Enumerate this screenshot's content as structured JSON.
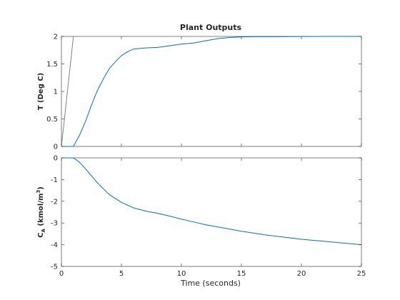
{
  "figure": {
    "title": "Plant Outputs",
    "xlabel": "Time (seconds)",
    "ylabel_top": "T (Deg C)",
    "ylabel_bottom_main": "C",
    "ylabel_bottom_sub": "A",
    "ylabel_bottom_rest": " (kmol/m",
    "ylabel_bottom_sup": "3",
    "ylabel_bottom_close": ")"
  },
  "colors": {
    "reference": "#808080",
    "output": "#0072BD",
    "axis": "#262626"
  },
  "chart_data": [
    {
      "type": "line",
      "title": "Plant Outputs",
      "ylabel": "T (Deg C)",
      "xlim": [
        0,
        25
      ],
      "ylim": [
        0,
        2
      ],
      "xticks": [
        0,
        5,
        10,
        15,
        20,
        25
      ],
      "yticks": [
        0,
        0.5,
        1,
        1.5,
        2
      ],
      "ytick_labels": [
        "0",
        "0.5",
        "1",
        "1.5",
        "2"
      ],
      "grid": false,
      "series": [
        {
          "role": "reference",
          "x": [
            0,
            1,
            25
          ],
          "y": [
            0,
            2,
            2
          ]
        },
        {
          "role": "output",
          "x": [
            0,
            0.5,
            1,
            1.5,
            2,
            2.5,
            3,
            3.5,
            4,
            4.5,
            5,
            5.5,
            6,
            7,
            8,
            9,
            10,
            11,
            12,
            13,
            14,
            15,
            16,
            18,
            20,
            22,
            25
          ],
          "y": [
            0,
            0,
            0,
            0.2,
            0.45,
            0.75,
            1.02,
            1.23,
            1.42,
            1.54,
            1.65,
            1.72,
            1.77,
            1.79,
            1.8,
            1.83,
            1.86,
            1.88,
            1.92,
            1.96,
            1.98,
            1.99,
            1.995,
            1.995,
            1.998,
            2.0,
            2.0
          ]
        }
      ]
    },
    {
      "type": "line",
      "xlabel": "Time (seconds)",
      "ylabel": "C_A (kmol/m^3)",
      "xlim": [
        0,
        25
      ],
      "ylim": [
        -5,
        0
      ],
      "xticks": [
        0,
        5,
        10,
        15,
        20,
        25
      ],
      "xtick_labels": [
        "0",
        "5",
        "10",
        "15",
        "20",
        "25"
      ],
      "yticks": [
        -5,
        -4,
        -3,
        -2,
        -1,
        0
      ],
      "ytick_labels": [
        "-5",
        "-4",
        "-3",
        "-2",
        "-1",
        "0"
      ],
      "grid": false,
      "series": [
        {
          "role": "reference",
          "x": [
            0,
            25
          ],
          "y": [
            0,
            0
          ]
        },
        {
          "role": "output",
          "x": [
            0,
            1,
            1.5,
            2,
            3,
            4,
            5,
            6,
            7,
            8,
            9,
            10,
            11,
            12,
            13,
            15,
            17,
            20,
            22,
            25
          ],
          "y": [
            0,
            0,
            -0.2,
            -0.5,
            -1.15,
            -1.7,
            -2.05,
            -2.3,
            -2.45,
            -2.55,
            -2.68,
            -2.82,
            -2.95,
            -3.08,
            -3.18,
            -3.38,
            -3.55,
            -3.75,
            -3.85,
            -4.0
          ]
        }
      ]
    }
  ]
}
